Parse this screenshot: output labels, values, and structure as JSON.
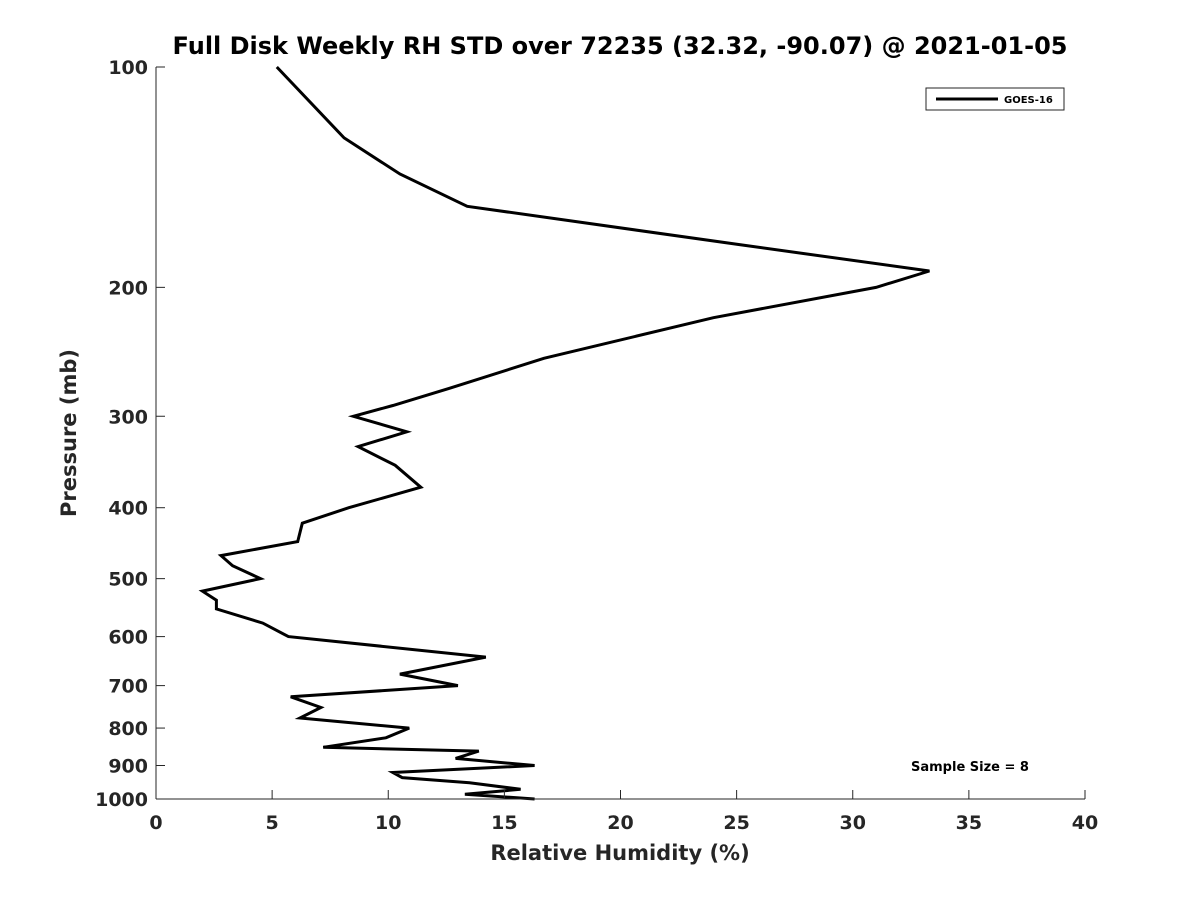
{
  "chart_data": {
    "type": "line",
    "title": "Full Disk Weekly RH STD over 72235 (32.32, -90.07) @ 2021-01-05",
    "xlabel": "Relative Humidity (%)",
    "ylabel": "Pressure (mb)",
    "xlim": [
      0,
      40
    ],
    "ylim": [
      100,
      1000
    ],
    "yscale": "log",
    "y_reversed": true,
    "xticks": [
      0,
      5,
      10,
      15,
      20,
      25,
      30,
      35,
      40
    ],
    "yticks": [
      100,
      200,
      300,
      400,
      500,
      600,
      700,
      800,
      900,
      1000
    ],
    "legend_position": "top-right",
    "grid": false,
    "annotation": "Sample Size = 8",
    "series": [
      {
        "name": "GOES-16",
        "color": "#000000",
        "x": [
          5.2,
          8.1,
          10.5,
          13.4,
          25.2,
          33.3,
          31.0,
          24.0,
          16.7,
          12.6,
          10.2,
          8.5,
          10.8,
          8.7,
          10.3,
          11.4,
          8.3,
          6.3,
          6.1,
          2.8,
          3.3,
          4.5,
          2.0,
          2.6,
          2.6,
          4.6,
          5.7,
          14.2,
          10.5,
          13.0,
          5.8,
          7.1,
          6.2,
          10.9,
          9.9,
          7.2,
          13.9,
          12.9,
          16.3,
          10.2,
          10.6,
          13.5,
          15.7,
          13.3,
          16.3
        ],
        "y": [
          100,
          125,
          140,
          155,
          175,
          190,
          200,
          220,
          250,
          275,
          290,
          300,
          315,
          330,
          350,
          375,
          400,
          420,
          445,
          465,
          480,
          500,
          520,
          535,
          550,
          575,
          600,
          640,
          675,
          700,
          725,
          750,
          775,
          800,
          825,
          850,
          860,
          880,
          900,
          920,
          935,
          950,
          970,
          985,
          1000
        ]
      }
    ]
  }
}
